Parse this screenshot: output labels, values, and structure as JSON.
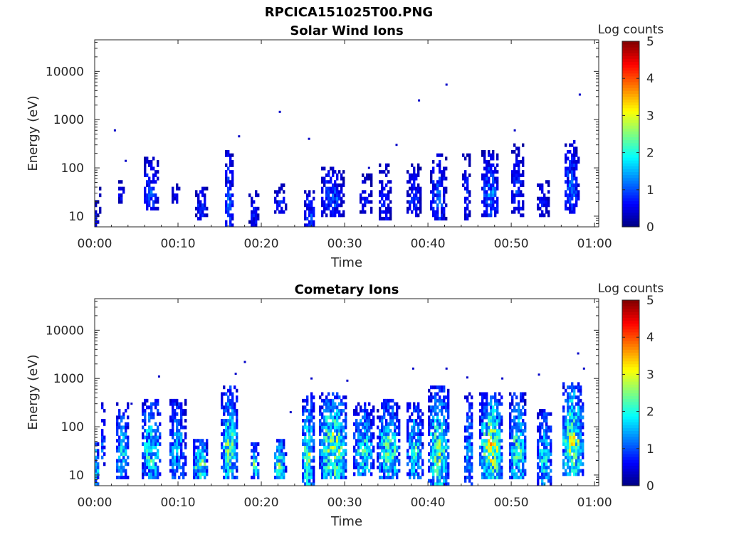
{
  "figure": {
    "title": "RPCICA151025T00.PNG"
  },
  "chart_data": [
    {
      "type": "heatmap",
      "title": "Solar Wind Ions",
      "xlabel": "Time",
      "ylabel": "Energy (eV)",
      "x_ticks": [
        "00:00",
        "00:10",
        "00:20",
        "00:30",
        "00:40",
        "00:50",
        "01:00"
      ],
      "x_range_minutes": [
        0,
        60.5
      ],
      "y_scale": "log",
      "y_ticks": [
        10,
        100,
        1000,
        10000
      ],
      "y_range": [
        6,
        45000
      ],
      "colorbar": {
        "label": "Log counts",
        "ticks": [
          0,
          1,
          2,
          3,
          4,
          5
        ],
        "range": [
          0,
          5
        ],
        "colormap": "jet"
      },
      "background": "#ffffff",
      "seed": 11,
      "intensity_scale": 0.55,
      "bursts": [
        {
          "t": 0.2,
          "width": 0.4,
          "emin": 6,
          "emax": 22,
          "level": 1.0
        },
        {
          "t": 0.6,
          "width": 0.3,
          "emin": 12,
          "emax": 40,
          "level": 0.8
        },
        {
          "t": 3.2,
          "width": 0.7,
          "emin": 18,
          "emax": 60,
          "level": 1.1
        },
        {
          "t": 6.7,
          "width": 1.6,
          "emin": 14,
          "emax": 180,
          "level": 1.6
        },
        {
          "t": 9.8,
          "width": 1.0,
          "emin": 18,
          "emax": 45,
          "level": 1.0
        },
        {
          "t": 12.8,
          "width": 1.2,
          "emin": 8,
          "emax": 40,
          "level": 1.5
        },
        {
          "t": 16.1,
          "width": 1.0,
          "emin": 6,
          "emax": 250,
          "level": 1.7
        },
        {
          "t": 19.1,
          "width": 0.9,
          "emin": 6,
          "emax": 35,
          "level": 1.2
        },
        {
          "t": 22.3,
          "width": 1.2,
          "emin": 12,
          "emax": 45,
          "level": 1.3
        },
        {
          "t": 25.8,
          "width": 1.2,
          "emin": 6,
          "emax": 35,
          "level": 1.6
        },
        {
          "t": 28.5,
          "width": 2.4,
          "emin": 10,
          "emax": 110,
          "level": 1.7
        },
        {
          "t": 32.5,
          "width": 1.3,
          "emin": 12,
          "emax": 80,
          "level": 1.1
        },
        {
          "t": 34.8,
          "width": 1.4,
          "emin": 8,
          "emax": 130,
          "level": 1.2
        },
        {
          "t": 38.3,
          "width": 1.4,
          "emin": 10,
          "emax": 130,
          "level": 1.4
        },
        {
          "t": 41.2,
          "width": 1.7,
          "emin": 8,
          "emax": 200,
          "level": 1.7
        },
        {
          "t": 44.6,
          "width": 0.7,
          "emin": 8,
          "emax": 200,
          "level": 1.2
        },
        {
          "t": 47.5,
          "width": 1.8,
          "emin": 10,
          "emax": 220,
          "level": 2.1
        },
        {
          "t": 50.7,
          "width": 1.3,
          "emin": 10,
          "emax": 300,
          "level": 1.3
        },
        {
          "t": 53.8,
          "width": 1.3,
          "emin": 10,
          "emax": 60,
          "level": 1.0
        },
        {
          "t": 57.2,
          "width": 1.6,
          "emin": 12,
          "emax": 400,
          "level": 1.8
        }
      ],
      "isolated": [
        {
          "t": 2.3,
          "e": 600
        },
        {
          "t": 3.6,
          "e": 140
        },
        {
          "t": 17.2,
          "e": 450
        },
        {
          "t": 22.1,
          "e": 1450
        },
        {
          "t": 25.6,
          "e": 400
        },
        {
          "t": 38.8,
          "e": 2500
        },
        {
          "t": 42.1,
          "e": 5300
        },
        {
          "t": 50.3,
          "e": 600
        },
        {
          "t": 58.1,
          "e": 3300
        },
        {
          "t": 32.8,
          "e": 100
        },
        {
          "t": 36.1,
          "e": 300
        }
      ]
    },
    {
      "type": "heatmap",
      "title": "Cometary Ions",
      "xlabel": "Time",
      "ylabel": "Energy (eV)",
      "x_ticks": [
        "00:00",
        "00:10",
        "00:20",
        "00:30",
        "00:40",
        "00:50",
        "01:00"
      ],
      "x_range_minutes": [
        0,
        60.5
      ],
      "y_scale": "log",
      "y_ticks": [
        10,
        100,
        1000,
        10000
      ],
      "y_range": [
        6,
        45000
      ],
      "colorbar": {
        "label": "Log counts",
        "ticks": [
          0,
          1,
          2,
          3,
          4,
          5
        ],
        "range": [
          0,
          5
        ],
        "colormap": "jet"
      },
      "background": "#ffffff",
      "seed": 37,
      "intensity_scale": 0.9,
      "bursts": [
        {
          "t": 0.2,
          "width": 0.6,
          "emin": 6,
          "emax": 60,
          "level": 2.0
        },
        {
          "t": 1.0,
          "width": 0.6,
          "emin": 15,
          "emax": 350,
          "level": 1.2
        },
        {
          "t": 3.3,
          "width": 1.4,
          "emin": 8,
          "emax": 300,
          "level": 1.8
        },
        {
          "t": 6.8,
          "width": 2.2,
          "emin": 8,
          "emax": 400,
          "level": 2.2
        },
        {
          "t": 9.9,
          "width": 1.8,
          "emin": 8,
          "emax": 400,
          "level": 1.7
        },
        {
          "t": 12.7,
          "width": 1.6,
          "emin": 8,
          "emax": 60,
          "level": 2.6
        },
        {
          "t": 16.2,
          "width": 1.8,
          "emin": 8,
          "emax": 700,
          "level": 2.5
        },
        {
          "t": 19.2,
          "width": 0.9,
          "emin": 8,
          "emax": 50,
          "level": 2.4
        },
        {
          "t": 22.2,
          "width": 1.3,
          "emin": 8,
          "emax": 60,
          "level": 2.4
        },
        {
          "t": 25.6,
          "width": 1.4,
          "emin": 6,
          "emax": 500,
          "level": 2.6
        },
        {
          "t": 28.6,
          "width": 3.0,
          "emin": 8,
          "emax": 500,
          "level": 3.0
        },
        {
          "t": 32.3,
          "width": 2.2,
          "emin": 10,
          "emax": 300,
          "level": 2.2
        },
        {
          "t": 35.3,
          "width": 2.4,
          "emin": 8,
          "emax": 400,
          "level": 2.4
        },
        {
          "t": 38.4,
          "width": 1.8,
          "emin": 8,
          "emax": 300,
          "level": 2.2
        },
        {
          "t": 41.3,
          "width": 2.2,
          "emin": 6,
          "emax": 700,
          "level": 2.7
        },
        {
          "t": 44.9,
          "width": 1.0,
          "emin": 6,
          "emax": 500,
          "level": 1.6
        },
        {
          "t": 47.6,
          "width": 2.4,
          "emin": 8,
          "emax": 500,
          "level": 3.2
        },
        {
          "t": 50.8,
          "width": 1.8,
          "emin": 8,
          "emax": 500,
          "level": 2.4
        },
        {
          "t": 54.0,
          "width": 1.6,
          "emin": 6,
          "emax": 250,
          "level": 2.0
        },
        {
          "t": 57.4,
          "width": 2.4,
          "emin": 10,
          "emax": 900,
          "level": 2.9
        }
      ],
      "isolated": [
        {
          "t": 4.3,
          "e": 300
        },
        {
          "t": 7.6,
          "e": 1100
        },
        {
          "t": 16.8,
          "e": 1250
        },
        {
          "t": 17.9,
          "e": 2200
        },
        {
          "t": 23.4,
          "e": 200
        },
        {
          "t": 25.9,
          "e": 1000
        },
        {
          "t": 30.2,
          "e": 900
        },
        {
          "t": 38.1,
          "e": 1600
        },
        {
          "t": 42.1,
          "e": 1600
        },
        {
          "t": 44.6,
          "e": 1050
        },
        {
          "t": 48.8,
          "e": 1000
        },
        {
          "t": 53.2,
          "e": 1200
        },
        {
          "t": 57.9,
          "e": 3300
        },
        {
          "t": 58.6,
          "e": 1600
        }
      ]
    }
  ]
}
